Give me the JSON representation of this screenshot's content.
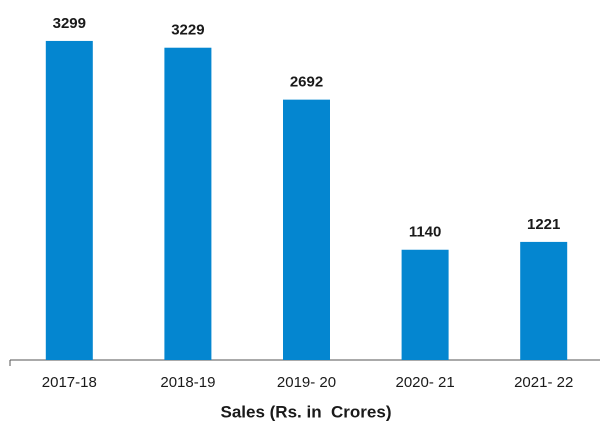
{
  "chart_data": {
    "type": "bar",
    "categories": [
      "2017-18",
      "2018-19",
      "2019- 20",
      "2020- 21",
      "2021- 22"
    ],
    "values": [
      3299,
      3229,
      2692,
      1140,
      1221
    ],
    "color": "#0486d0",
    "xlabel": "Sales (Rs. in  Crores)",
    "ylim": [
      0,
      3500
    ]
  }
}
